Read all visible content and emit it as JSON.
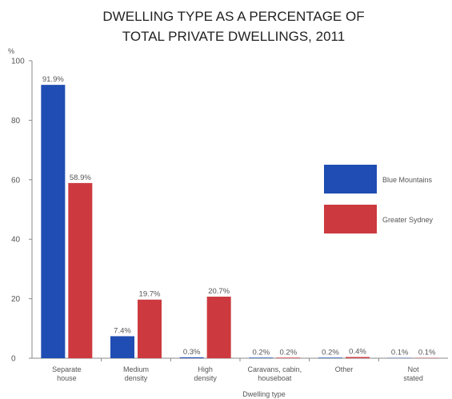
{
  "chart_data": {
    "type": "bar",
    "title_lines": [
      "DWELLING TYPE AS A PERCENTAGE OF",
      "TOTAL PRIVATE DWELLINGS, 2011"
    ],
    "ylabel": "%",
    "xlabel": "Dwelling type",
    "ylim": [
      0,
      100
    ],
    "yticks": [
      "0",
      "20",
      "40",
      "60",
      "80",
      "100"
    ],
    "categories": [
      [
        "Separate",
        "house"
      ],
      [
        "Medium",
        "density"
      ],
      [
        "High",
        "density"
      ],
      [
        "Caravans, cabin,",
        "houseboat"
      ],
      [
        "Other"
      ],
      [
        "Not",
        "stated"
      ]
    ],
    "series": [
      {
        "name": "Blue Mountains",
        "color": "#1f4db3",
        "values": [
          91.9,
          7.4,
          0.3,
          0.2,
          0.2,
          0.1
        ],
        "labels": [
          "91.9%",
          "7.4%",
          "0.3%",
          "0.2%",
          "0.2%",
          "0.1%"
        ]
      },
      {
        "name": "Greater Sydney",
        "color": "#cc3a3f",
        "values": [
          58.9,
          19.7,
          20.7,
          0.2,
          0.4,
          0.1
        ],
        "labels": [
          "58.9%",
          "19.7%",
          "20.7%",
          "0.2%",
          "0.4%",
          "0.1%"
        ]
      }
    ],
    "legend_position": "right"
  }
}
